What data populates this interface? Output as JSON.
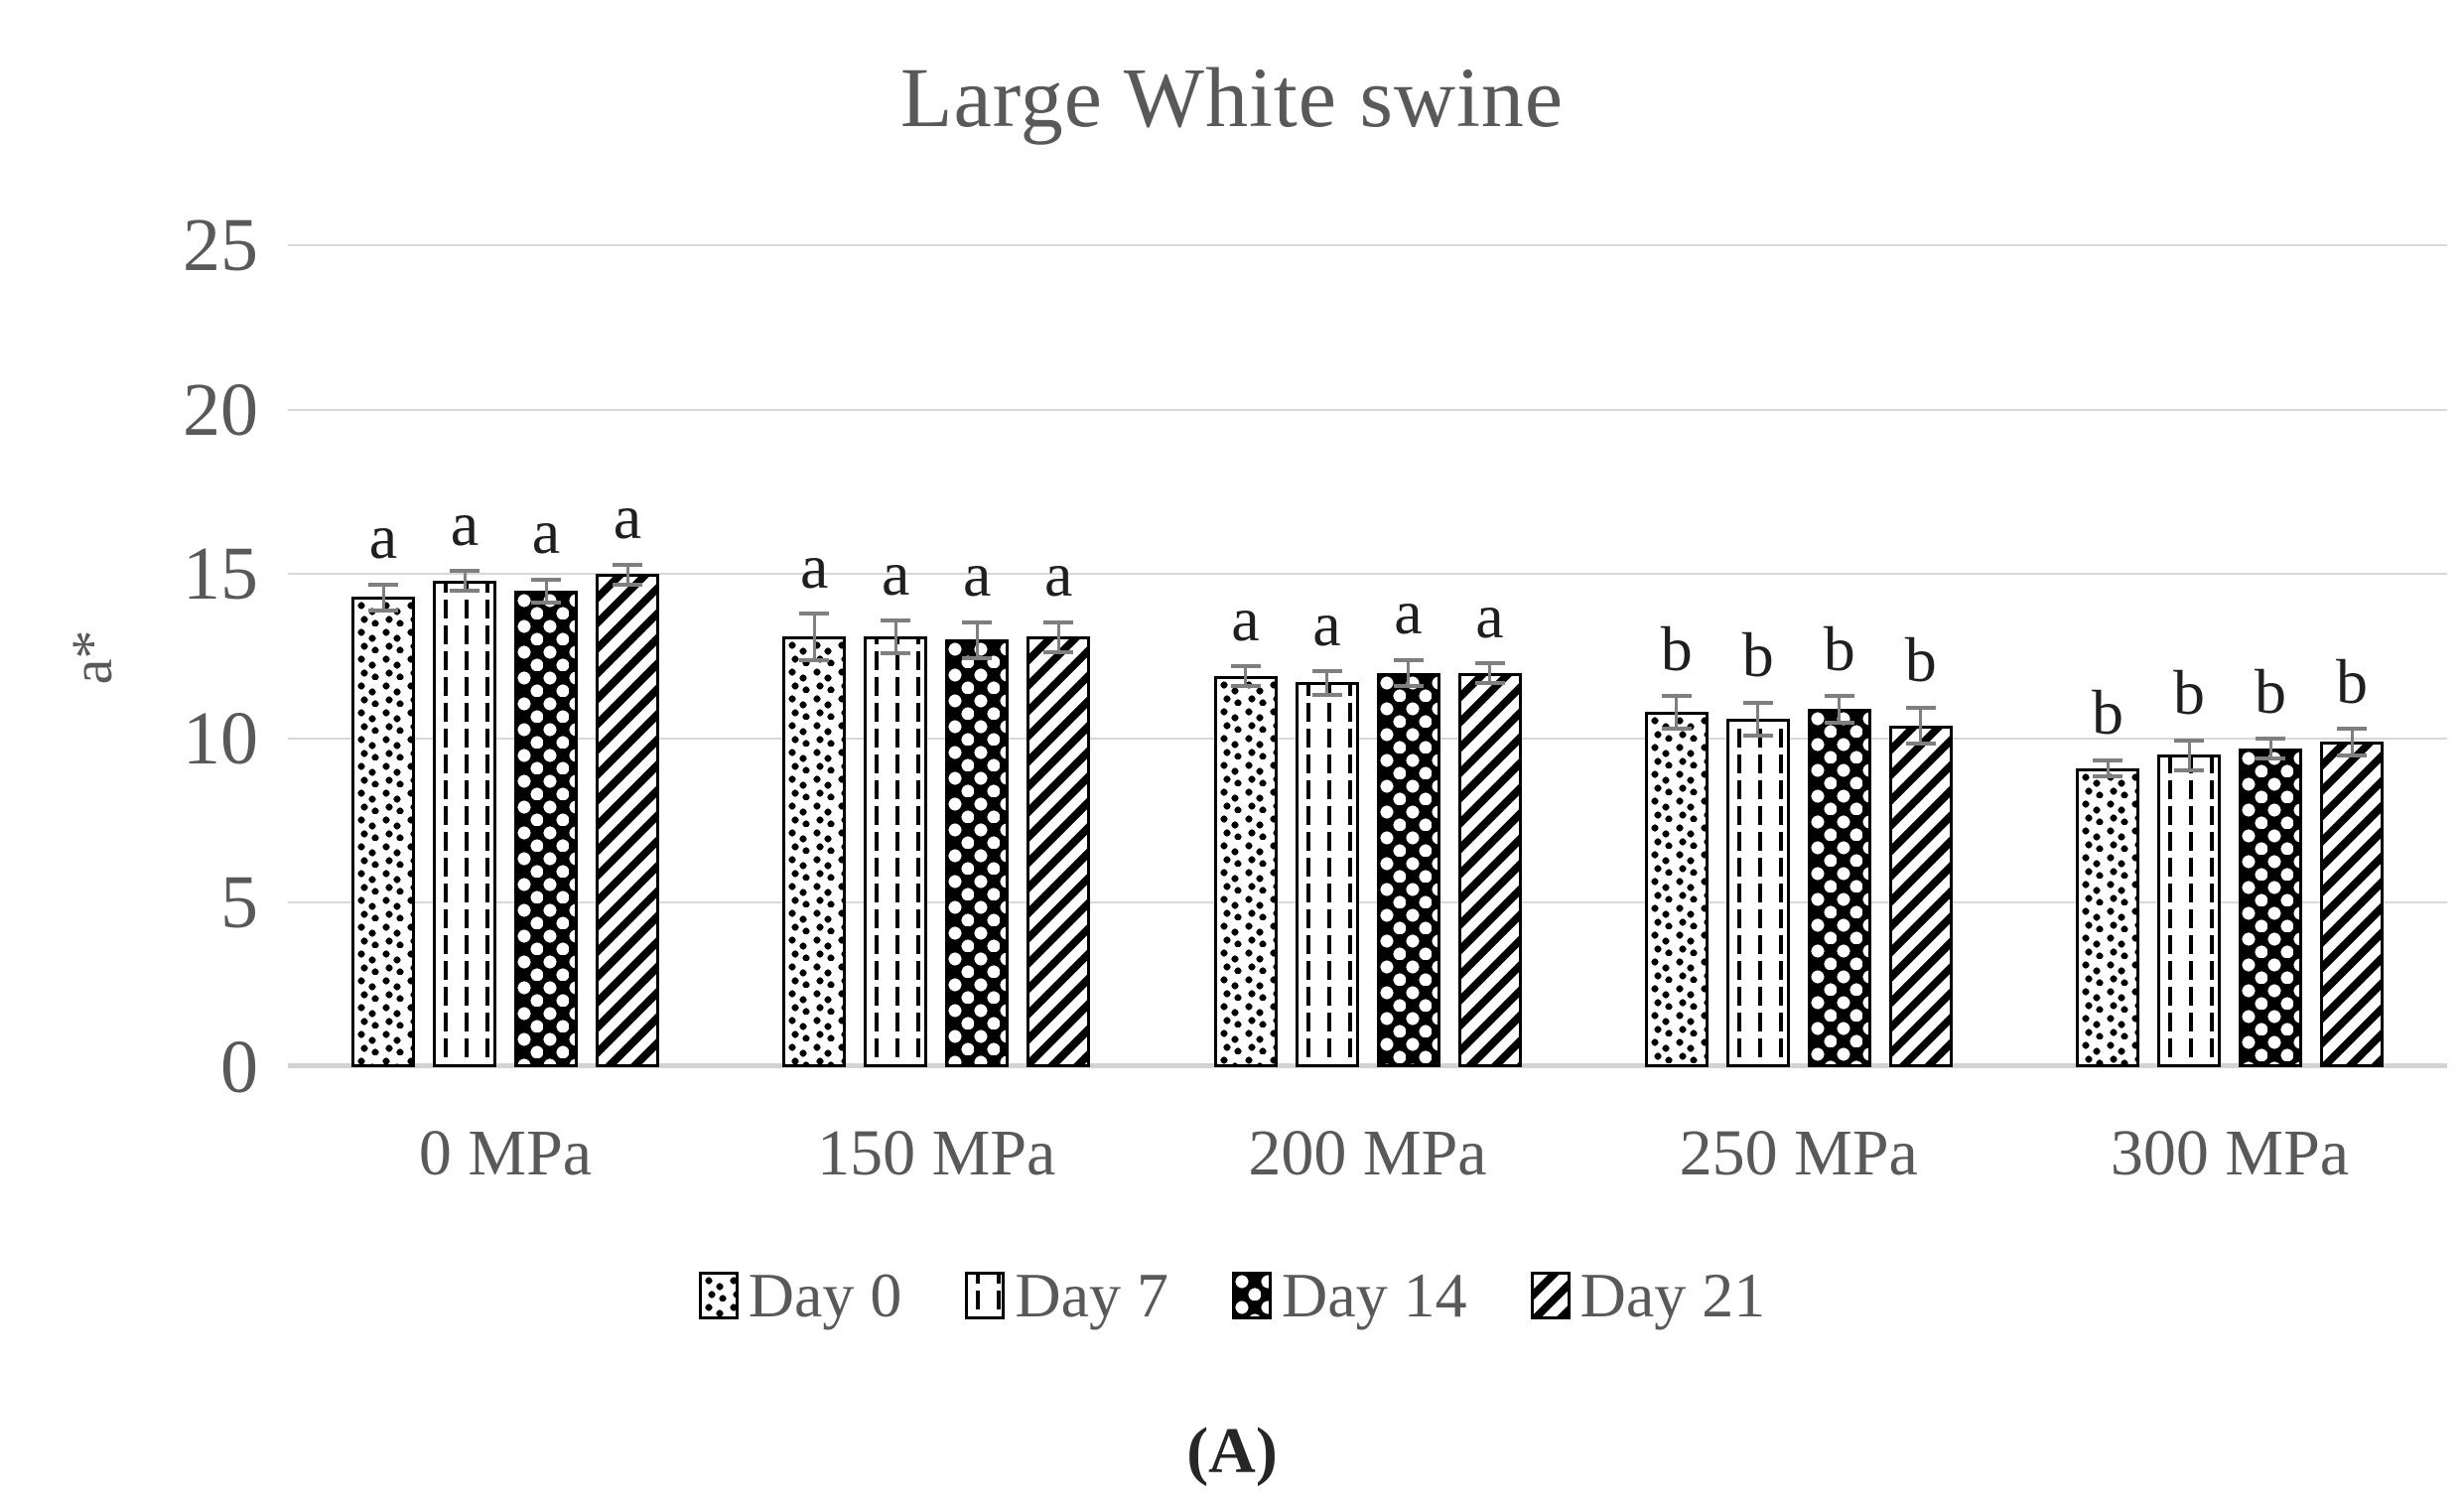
{
  "title": "Large White swine",
  "caption": "(A)",
  "y_axis": {
    "label": "a*",
    "tick_labels": [
      "0",
      "5",
      "10",
      "15",
      "20",
      "25"
    ]
  },
  "x_axis": {
    "categories": [
      "0 MPa",
      "150 MPa",
      "200 MPa",
      "250 MPa",
      "300 MPa"
    ]
  },
  "legend": {
    "items": [
      "Day 0",
      "Day 7",
      "Day 14",
      "Day 21"
    ]
  },
  "colors": {
    "background": "#ffffff",
    "grid": "#d9d9d9",
    "axis_text": "#595959",
    "significance_letter": "#1f1f1f",
    "error_bar": "#7f7f7f",
    "bar_ink": "#000000"
  },
  "chart_data": {
    "type": "bar",
    "title": "Large White swine",
    "ylabel": "a*",
    "xlabel": "",
    "ylim": [
      0,
      25
    ],
    "yticks": [
      0,
      5,
      10,
      15,
      20,
      25
    ],
    "grid": true,
    "legend_position": "bottom",
    "categories": [
      "0 MPa",
      "150 MPa",
      "200 MPa",
      "250 MPa",
      "300 MPa"
    ],
    "series": [
      {
        "name": "Day 0",
        "pattern": "dots",
        "values": [
          14.3,
          13.1,
          11.9,
          10.8,
          9.1
        ],
        "errors": [
          0.4,
          0.7,
          0.3,
          0.5,
          0.25
        ],
        "sig_letters": [
          "a",
          "a",
          "a",
          "b",
          "b"
        ]
      },
      {
        "name": "Day 7",
        "pattern": "dashed-vertical",
        "values": [
          14.8,
          13.1,
          11.7,
          10.6,
          9.5
        ],
        "errors": [
          0.3,
          0.5,
          0.35,
          0.5,
          0.45
        ],
        "sig_letters": [
          "a",
          "a",
          "a",
          "b",
          "b"
        ]
      },
      {
        "name": "Day 14",
        "pattern": "circles",
        "values": [
          14.5,
          13.0,
          12.0,
          10.9,
          9.7
        ],
        "errors": [
          0.35,
          0.55,
          0.4,
          0.4,
          0.3
        ],
        "sig_letters": [
          "a",
          "a",
          "a",
          "b",
          "b"
        ]
      },
      {
        "name": "Day 21",
        "pattern": "diagonal-stripes",
        "values": [
          15.0,
          13.1,
          12.0,
          10.4,
          9.9
        ],
        "errors": [
          0.3,
          0.45,
          0.3,
          0.55,
          0.4
        ],
        "sig_letters": [
          "a",
          "a",
          "a",
          "b",
          "b"
        ]
      }
    ]
  }
}
